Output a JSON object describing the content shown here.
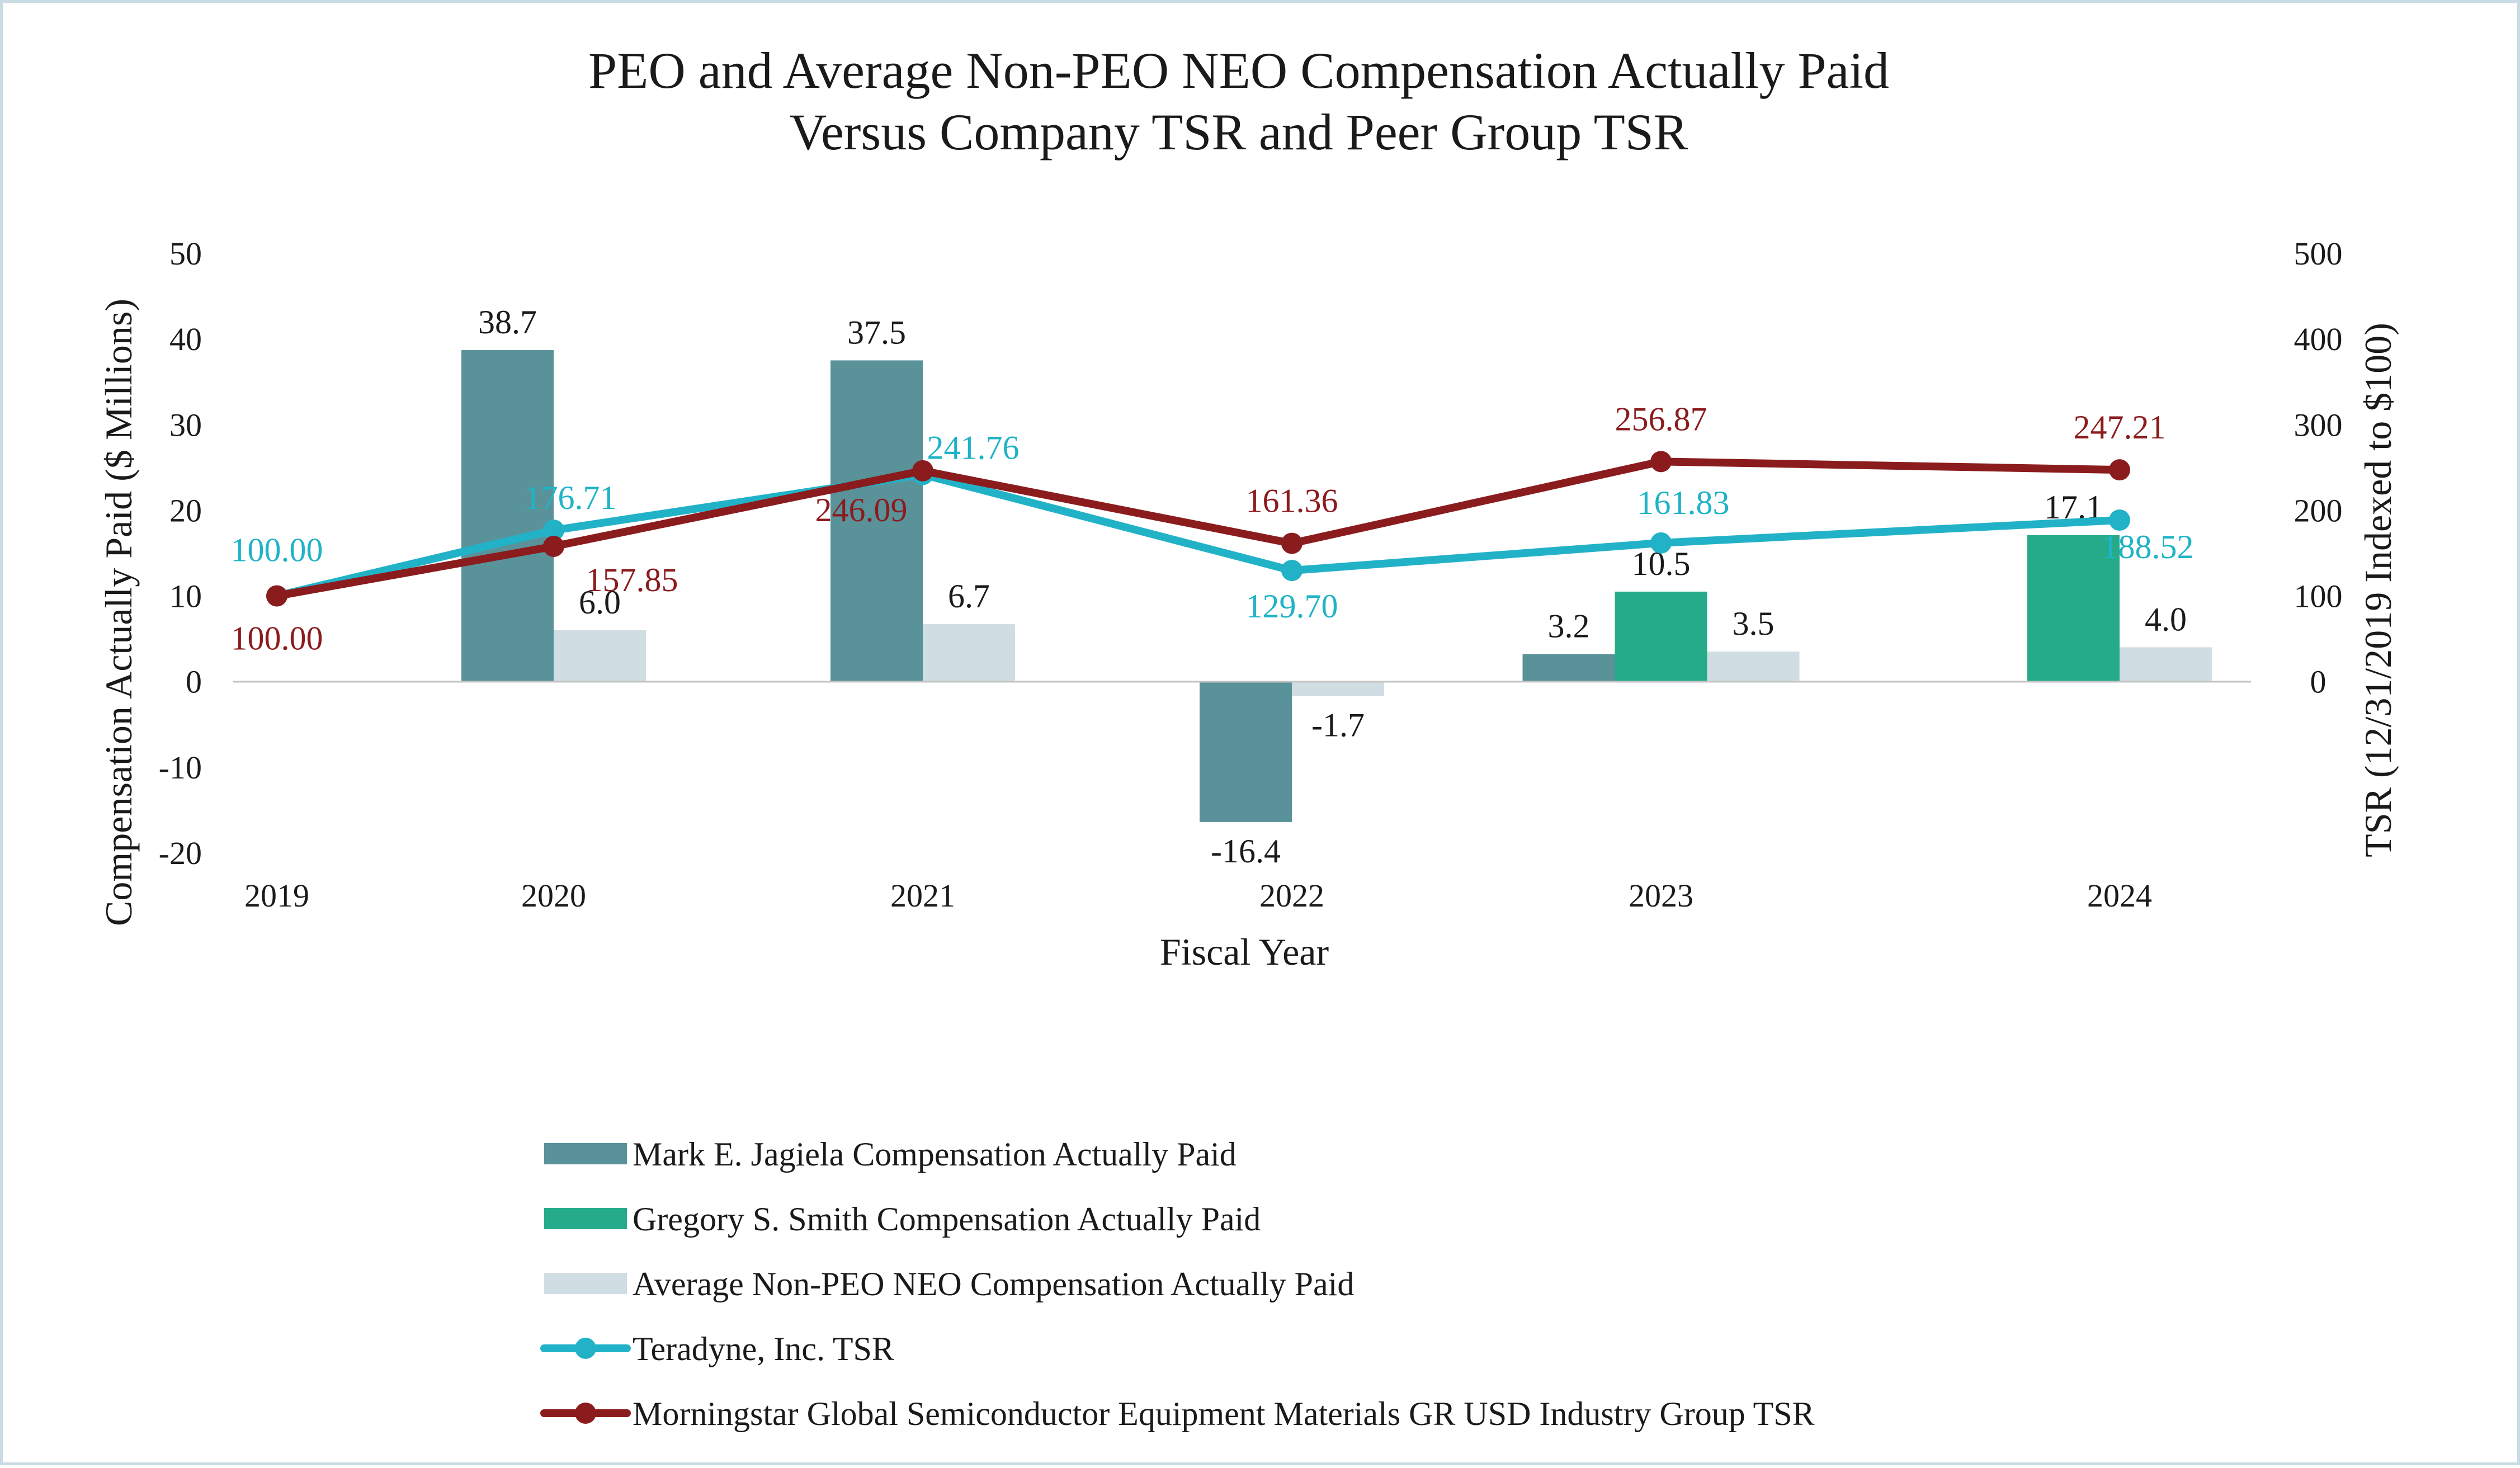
{
  "chart_data": {
    "type": "bar",
    "title": "PEO and Average Non-PEO NEO Compensation Actually Paid",
    "subtitle": "Versus Company TSR and Peer Group TSR",
    "xlabel": "Fiscal Year",
    "ylabel": "Compensation Actually Paid ($ Millions)",
    "y2label": "TSR (12/31/2019 Indexed to $100)",
    "categories": [
      "2019",
      "2020",
      "2021",
      "2022",
      "2023",
      "2024"
    ],
    "ylim": [
      -20,
      50
    ],
    "yticks": [
      "50",
      "40",
      "30",
      "20",
      "10",
      "0",
      "-10",
      "-20"
    ],
    "y2lim": [
      0,
      500
    ],
    "y2ticks": [
      "500",
      "400",
      "300",
      "200",
      "100",
      "0"
    ],
    "grid": false,
    "legend_position": "bottom",
    "bar_series": [
      {
        "name": "Mark E. Jagiela Compensation Actually Paid",
        "color": "#5a929a",
        "values": [
          null,
          38.7,
          37.5,
          -16.4,
          3.2,
          null
        ],
        "labels": [
          null,
          "38.7",
          "37.5",
          "-16.4",
          "3.2",
          null
        ]
      },
      {
        "name": "Gregory S. Smith Compensation Actually Paid",
        "color": "#25ab8a",
        "values": [
          null,
          null,
          null,
          null,
          10.5,
          17.1
        ],
        "labels": [
          null,
          null,
          null,
          null,
          "10.5",
          "17.1"
        ]
      },
      {
        "name": "Average Non-PEO NEO Compensation Actually Paid",
        "color": "#d0dde2",
        "values": [
          null,
          6.0,
          6.7,
          -1.7,
          3.5,
          4.0
        ],
        "labels": [
          null,
          "6.0",
          "6.7",
          "-1.7",
          "3.5",
          "4.0"
        ]
      }
    ],
    "line_series": [
      {
        "name": "Teradyne, Inc. TSR",
        "color": "#22b2c8",
        "label_color": "#1fb3c7",
        "axis": "right",
        "values": [
          100.0,
          176.71,
          241.76,
          129.7,
          161.83,
          188.52
        ],
        "labels": [
          "100.00",
          "176.71",
          "241.76",
          "129.70",
          "161.83",
          "188.52"
        ]
      },
      {
        "name": "Morningstar Global Semiconductor Equipment Materials GR USD Industry Group TSR",
        "color": "#8b1c1e",
        "label_color": "#8b1c1e",
        "axis": "right",
        "values": [
          100.0,
          157.85,
          246.09,
          161.36,
          256.87,
          247.21
        ],
        "labels": [
          "100.00",
          "157.85",
          "246.09",
          "161.36",
          "256.87",
          "247.21"
        ]
      }
    ]
  }
}
